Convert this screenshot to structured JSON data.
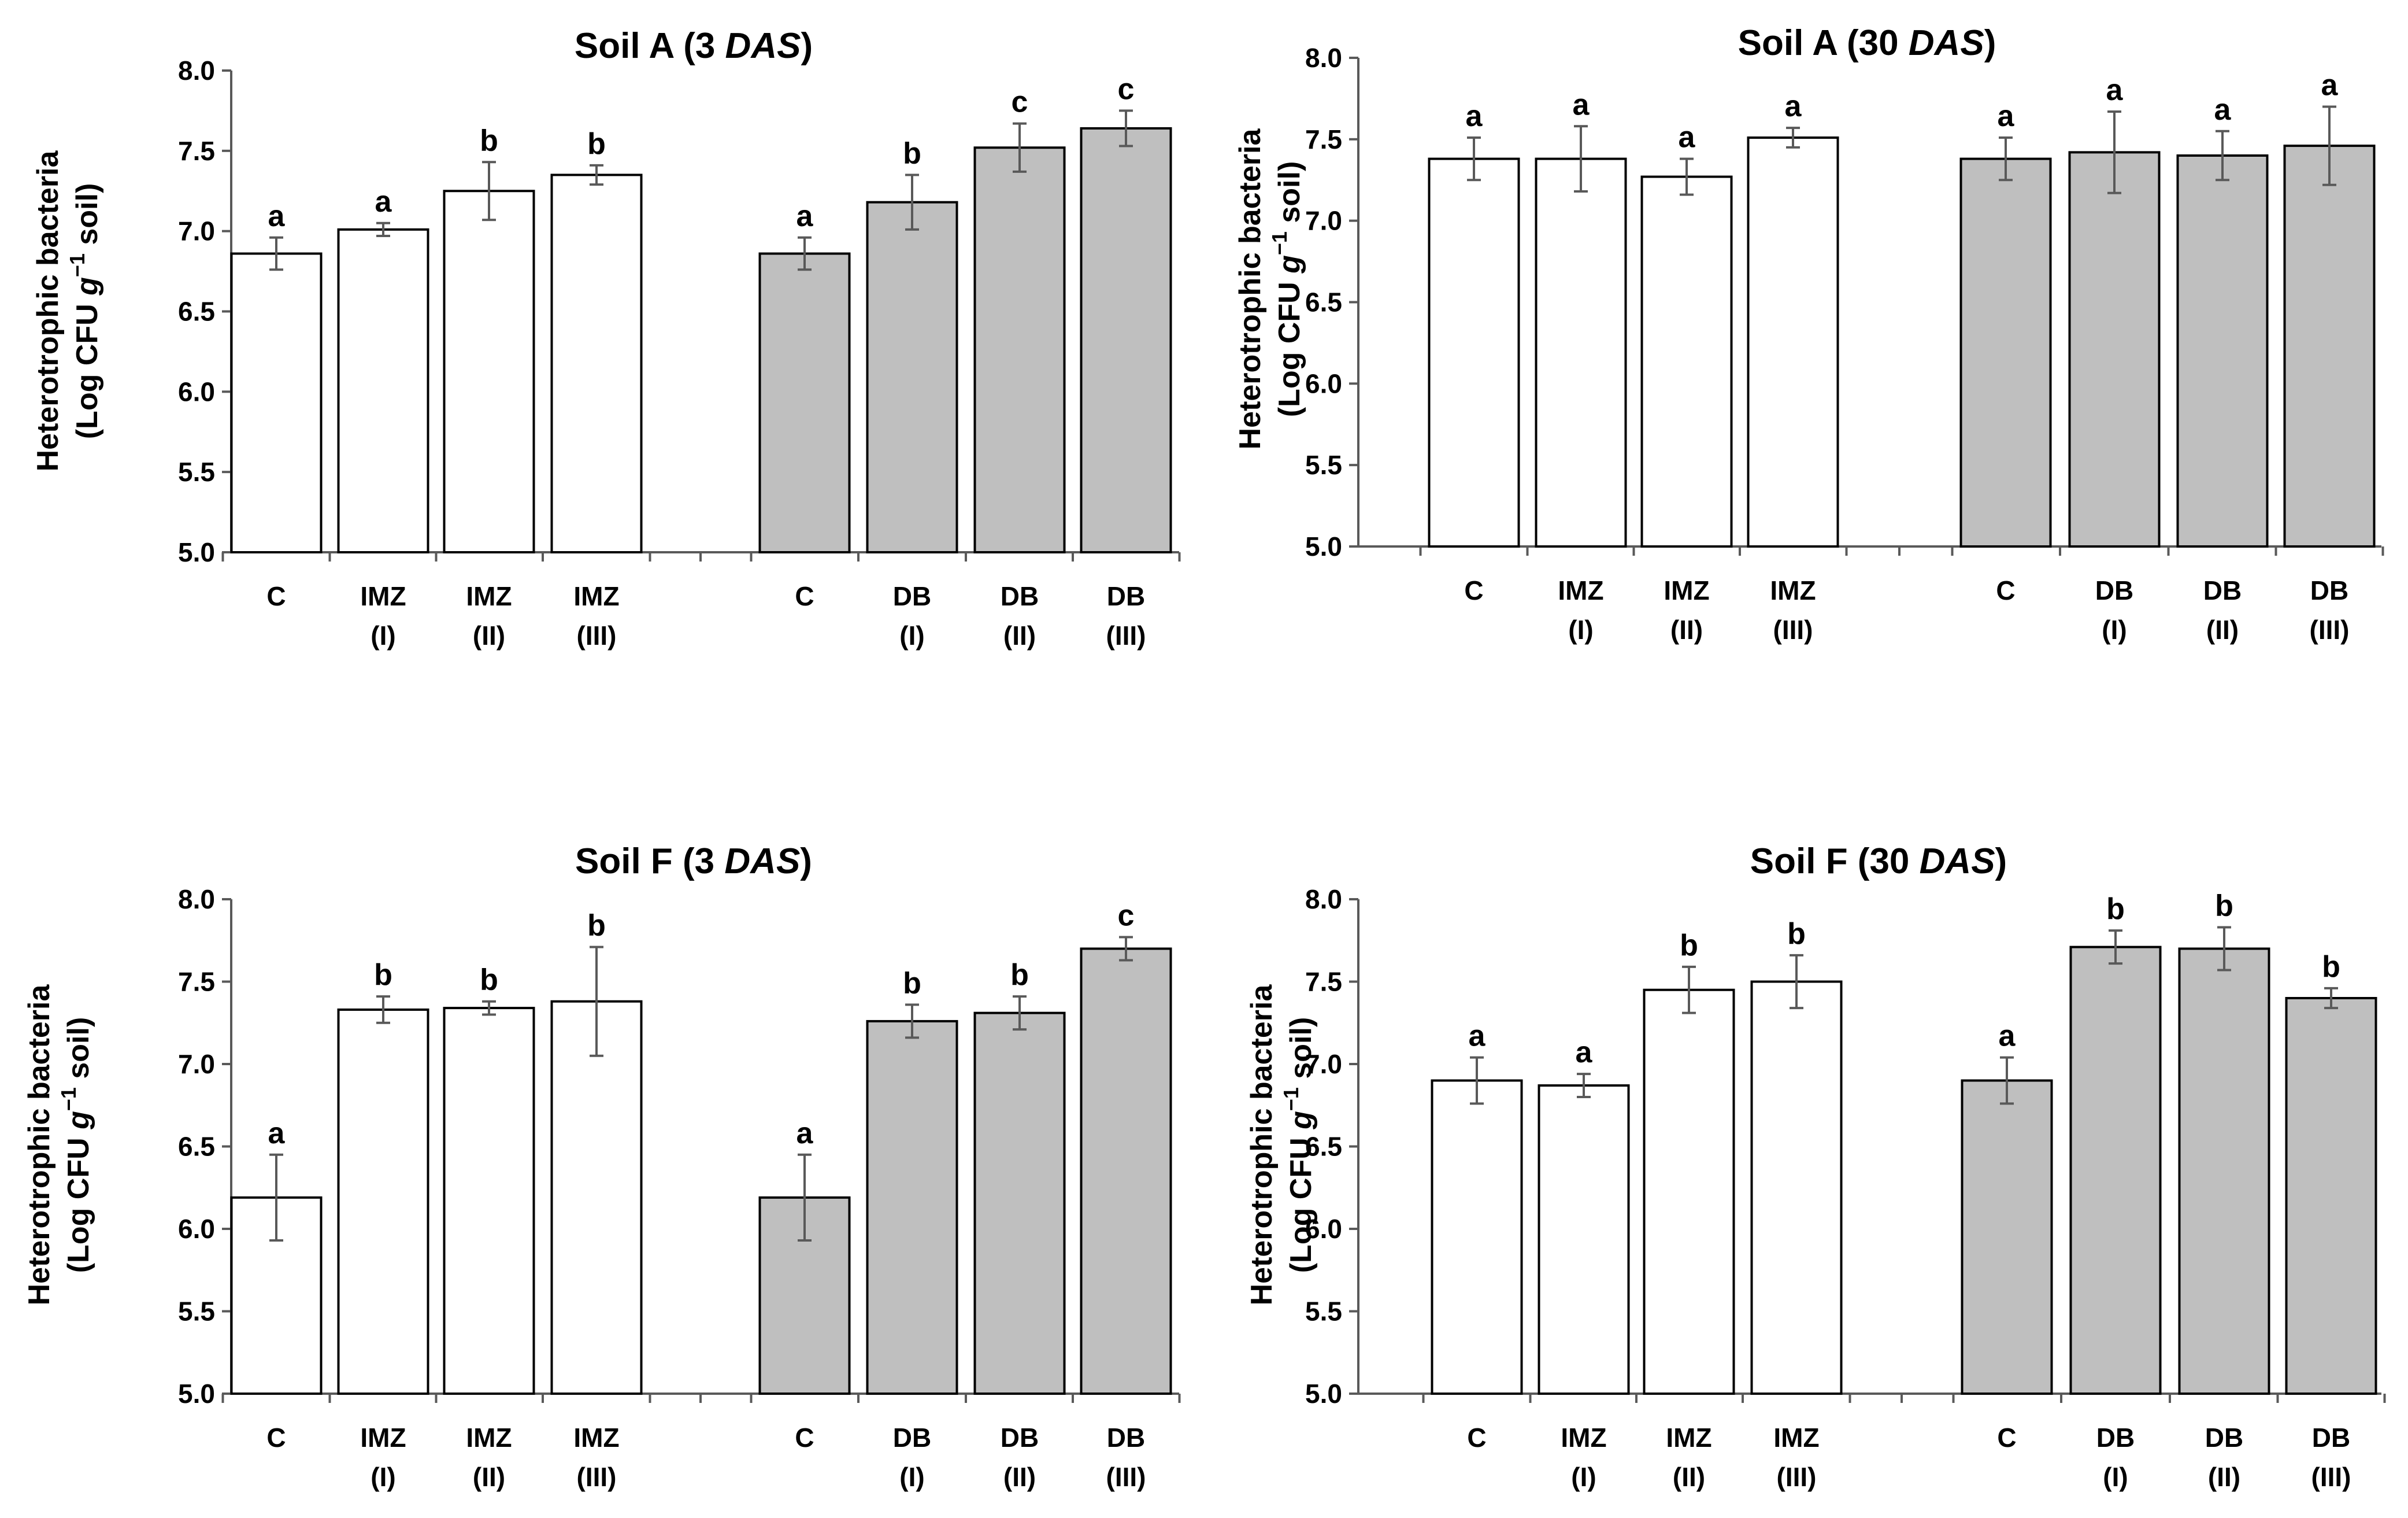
{
  "chart_data": [
    {
      "type": "bar",
      "title_main": "Soil A (3 ",
      "title_italic": "DAS",
      "title_close": ")",
      "ylabel_line1": "Heterotrophic bacteria",
      "ylabel_l2_a": "(Log",
      "ylabel_l2_b": " CFU ",
      "ylabel_l2_c": "g",
      "ylabel_l2_sup": "−1",
      "ylabel_l2_d": " soil)",
      "ylim": [
        5.0,
        8.0
      ],
      "yticks": [
        "5.0",
        "5.5",
        "6.0",
        "6.5",
        "7.0",
        "7.5",
        "8.0"
      ],
      "grid": false,
      "bars": [
        {
          "cat1": "C",
          "cat2": "",
          "value": 6.86,
          "err": 0.1,
          "sig": "a",
          "fill": "#ffffff"
        },
        {
          "cat1": "IMZ",
          "cat2": "(I)",
          "value": 7.01,
          "err": 0.04,
          "sig": "a",
          "fill": "#ffffff"
        },
        {
          "cat1": "IMZ",
          "cat2": "(II)",
          "value": 7.25,
          "err": 0.18,
          "sig": "b",
          "fill": "#ffffff"
        },
        {
          "cat1": "IMZ",
          "cat2": "(III)",
          "value": 7.35,
          "err": 0.06,
          "sig": "b",
          "fill": "#ffffff"
        },
        {
          "cat1": "C",
          "cat2": "",
          "value": 6.86,
          "err": 0.1,
          "sig": "a",
          "fill": "#bfbfbf"
        },
        {
          "cat1": "DB",
          "cat2": "(I)",
          "value": 7.18,
          "err": 0.17,
          "sig": "b",
          "fill": "#bfbfbf"
        },
        {
          "cat1": "DB",
          "cat2": "(II)",
          "value": 7.52,
          "err": 0.15,
          "sig": "c",
          "fill": "#bfbfbf"
        },
        {
          "cat1": "DB",
          "cat2": "(III)",
          "value": 7.64,
          "err": 0.11,
          "sig": "c",
          "fill": "#bfbfbf"
        }
      ]
    },
    {
      "type": "bar",
      "title_main": "Soil A (30 ",
      "title_italic": "DAS",
      "title_close": ")",
      "ylabel_line1": "Heterotrophic bacteria",
      "ylabel_l2_a": "(Log",
      "ylabel_l2_b": " CFU ",
      "ylabel_l2_c": "g",
      "ylabel_l2_sup": "−1",
      "ylabel_l2_d": " soil)",
      "ylim": [
        5.0,
        8.0
      ],
      "yticks": [
        "5.0",
        "5.5",
        "6.0",
        "6.5",
        "7.0",
        "7.5",
        "8.0"
      ],
      "grid": false,
      "bars": [
        {
          "cat1": "C",
          "cat2": "",
          "value": 7.38,
          "err": 0.13,
          "sig": "a",
          "fill": "#ffffff"
        },
        {
          "cat1": "IMZ",
          "cat2": "(I)",
          "value": 7.38,
          "err": 0.2,
          "sig": "a",
          "fill": "#ffffff"
        },
        {
          "cat1": "IMZ",
          "cat2": "(II)",
          "value": 7.27,
          "err": 0.11,
          "sig": "a",
          "fill": "#ffffff"
        },
        {
          "cat1": "IMZ",
          "cat2": "(III)",
          "value": 7.51,
          "err": 0.06,
          "sig": "a",
          "fill": "#ffffff"
        },
        {
          "cat1": "C",
          "cat2": "",
          "value": 7.38,
          "err": 0.13,
          "sig": "a",
          "fill": "#bfbfbf"
        },
        {
          "cat1": "DB",
          "cat2": "(I)",
          "value": 7.42,
          "err": 0.25,
          "sig": "a",
          "fill": "#bfbfbf"
        },
        {
          "cat1": "DB",
          "cat2": "(II)",
          "value": 7.4,
          "err": 0.15,
          "sig": "a",
          "fill": "#bfbfbf"
        },
        {
          "cat1": "DB",
          "cat2": "(III)",
          "value": 7.46,
          "err": 0.24,
          "sig": "a",
          "fill": "#bfbfbf"
        }
      ]
    },
    {
      "type": "bar",
      "title_main": "Soil F (3 ",
      "title_italic": "DAS",
      "title_close": ")",
      "ylabel_line1": "Heterotrophic bacteria",
      "ylabel_l2_a": "(Log",
      "ylabel_l2_b": " CFU ",
      "ylabel_l2_c": "g",
      "ylabel_l2_sup": "−1",
      "ylabel_l2_d": " soil)",
      "ylim": [
        5.0,
        8.0
      ],
      "yticks": [
        "5.0",
        "5.5",
        "6.0",
        "6.5",
        "7.0",
        "7.5",
        "8.0"
      ],
      "grid": false,
      "bars": [
        {
          "cat1": "C",
          "cat2": "",
          "value": 6.19,
          "err": 0.26,
          "sig": "a",
          "fill": "#ffffff"
        },
        {
          "cat1": "IMZ",
          "cat2": "(I)",
          "value": 7.33,
          "err": 0.08,
          "sig": "b",
          "fill": "#ffffff"
        },
        {
          "cat1": "IMZ",
          "cat2": "(II)",
          "value": 7.34,
          "err": 0.04,
          "sig": "b",
          "fill": "#ffffff"
        },
        {
          "cat1": "IMZ",
          "cat2": "(III)",
          "value": 7.38,
          "err": 0.33,
          "sig": "b",
          "fill": "#ffffff"
        },
        {
          "cat1": "C",
          "cat2": "",
          "value": 6.19,
          "err": 0.26,
          "sig": "a",
          "fill": "#bfbfbf"
        },
        {
          "cat1": "DB",
          "cat2": "(I)",
          "value": 7.26,
          "err": 0.1,
          "sig": "b",
          "fill": "#bfbfbf"
        },
        {
          "cat1": "DB",
          "cat2": "(II)",
          "value": 7.31,
          "err": 0.1,
          "sig": "b",
          "fill": "#bfbfbf"
        },
        {
          "cat1": "DB",
          "cat2": "(III)",
          "value": 7.7,
          "err": 0.07,
          "sig": "c",
          "fill": "#bfbfbf"
        }
      ]
    },
    {
      "type": "bar",
      "title_main": "Soil F (30 ",
      "title_italic": "DAS",
      "title_close": ")",
      "ylabel_line1": "Heterotrophic bacteria",
      "ylabel_l2_a": "(Log",
      "ylabel_l2_b": " CFU ",
      "ylabel_l2_c": "g",
      "ylabel_l2_sup": "−1",
      "ylabel_l2_d": " soil)",
      "ylim": [
        5.0,
        8.0
      ],
      "yticks": [
        "5.0",
        "5.5",
        "6.0",
        "6.5",
        "7.0",
        "7.5",
        "8.0"
      ],
      "grid": false,
      "bars": [
        {
          "cat1": "C",
          "cat2": "",
          "value": 6.9,
          "err": 0.14,
          "sig": "a",
          "fill": "#ffffff"
        },
        {
          "cat1": "IMZ",
          "cat2": "(I)",
          "value": 6.87,
          "err": 0.07,
          "sig": "a",
          "fill": "#ffffff"
        },
        {
          "cat1": "IMZ",
          "cat2": "(II)",
          "value": 7.45,
          "err": 0.14,
          "sig": "b",
          "fill": "#ffffff"
        },
        {
          "cat1": "IMZ",
          "cat2": "(III)",
          "value": 7.5,
          "err": 0.16,
          "sig": "b",
          "fill": "#ffffff"
        },
        {
          "cat1": "C",
          "cat2": "",
          "value": 6.9,
          "err": 0.14,
          "sig": "a",
          "fill": "#bfbfbf"
        },
        {
          "cat1": "DB",
          "cat2": "(I)",
          "value": 7.71,
          "err": 0.1,
          "sig": "b",
          "fill": "#bfbfbf"
        },
        {
          "cat1": "DB",
          "cat2": "(II)",
          "value": 7.7,
          "err": 0.13,
          "sig": "b",
          "fill": "#bfbfbf"
        },
        {
          "cat1": "DB",
          "cat2": "(III)",
          "value": 7.4,
          "err": 0.06,
          "sig": "b",
          "fill": "#bfbfbf"
        }
      ]
    }
  ]
}
